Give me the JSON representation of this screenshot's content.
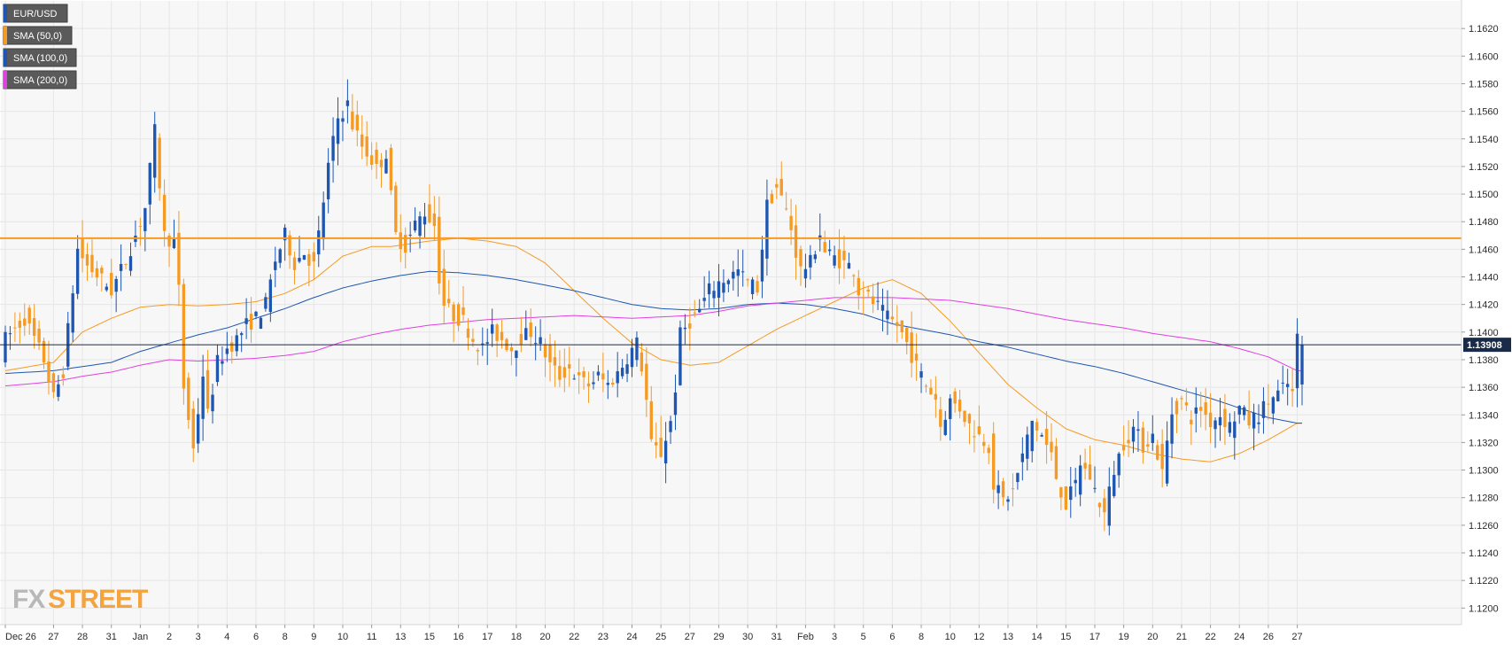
{
  "chart_data": {
    "type": "candlestick",
    "instrument": "EUR/USD",
    "last_price_label": "1.13908",
    "last_price": 1.13908,
    "horizontal_level": 1.1468,
    "ylim": [
      1.1188,
      1.164
    ],
    "y_ticks": [
      "1.1200",
      "1.1220",
      "1.1240",
      "1.1260",
      "1.1280",
      "1.1300",
      "1.1320",
      "1.1340",
      "1.1360",
      "1.1380",
      "1.1400",
      "1.1420",
      "1.1440",
      "1.1460",
      "1.1480",
      "1.1500",
      "1.1520",
      "1.1540",
      "1.1560",
      "1.1580",
      "1.1600",
      "1.1620"
    ],
    "x_ticks": [
      {
        "label": "Dec 26",
        "bar": 0
      },
      {
        "label": "27",
        "bar": 10
      },
      {
        "label": "28",
        "bar": 16
      },
      {
        "label": "31",
        "bar": 22
      },
      {
        "label": "Jan",
        "bar": 28
      },
      {
        "label": "2",
        "bar": 34
      },
      {
        "label": "3",
        "bar": 40
      },
      {
        "label": "4",
        "bar": 46
      },
      {
        "label": "6",
        "bar": 52
      },
      {
        "label": "8",
        "bar": 58
      },
      {
        "label": "9",
        "bar": 64
      },
      {
        "label": "10",
        "bar": 70
      },
      {
        "label": "11",
        "bar": 76
      },
      {
        "label": "13",
        "bar": 82
      },
      {
        "label": "15",
        "bar": 88
      },
      {
        "label": "16",
        "bar": 94
      },
      {
        "label": "17",
        "bar": 100
      },
      {
        "label": "18",
        "bar": 106
      },
      {
        "label": "20",
        "bar": 112
      },
      {
        "label": "22",
        "bar": 118
      },
      {
        "label": "23",
        "bar": 124
      },
      {
        "label": "24",
        "bar": 130
      },
      {
        "label": "25",
        "bar": 136
      },
      {
        "label": "27",
        "bar": 142
      },
      {
        "label": "29",
        "bar": 148
      },
      {
        "label": "30",
        "bar": 154
      },
      {
        "label": "31",
        "bar": 160
      },
      {
        "label": "Feb",
        "bar": 166
      },
      {
        "label": "3",
        "bar": 172
      },
      {
        "label": "5",
        "bar": 178
      },
      {
        "label": "6",
        "bar": 184
      },
      {
        "label": "8",
        "bar": 190
      },
      {
        "label": "10",
        "bar": 196
      },
      {
        "label": "12",
        "bar": 202
      },
      {
        "label": "13",
        "bar": 208
      },
      {
        "label": "14",
        "bar": 214
      },
      {
        "label": "15",
        "bar": 220
      },
      {
        "label": "17",
        "bar": 226
      },
      {
        "label": "19",
        "bar": 232
      },
      {
        "label": "20",
        "bar": 238
      },
      {
        "label": "21",
        "bar": 244
      },
      {
        "label": "22",
        "bar": 250
      },
      {
        "label": "24",
        "bar": 256
      },
      {
        "label": "26",
        "bar": 262
      },
      {
        "label": "27",
        "bar": 268
      }
    ],
    "total_bars": 270,
    "bull_color": "#1e56b0",
    "bear_color": "#f59a23",
    "level_color": "#f59a23",
    "legend": [
      {
        "label": "EUR/USD",
        "color": "#1e56b0"
      },
      {
        "label": "SMA (50,0)",
        "color": "#f59a23"
      },
      {
        "label": "SMA (100,0)",
        "color": "#1e56b0"
      },
      {
        "label": "SMA (200,0)",
        "color": "#e040e0"
      }
    ],
    "series": [
      {
        "name": "SMA (50,0)",
        "color": "#f59a23",
        "anchors": [
          [
            0,
            1.1372
          ],
          [
            10,
            1.1378
          ],
          [
            16,
            1.14
          ],
          [
            22,
            1.141
          ],
          [
            28,
            1.1418
          ],
          [
            34,
            1.142
          ],
          [
            40,
            1.1419
          ],
          [
            46,
            1.142
          ],
          [
            52,
            1.1422
          ],
          [
            58,
            1.1428
          ],
          [
            64,
            1.1438
          ],
          [
            70,
            1.1455
          ],
          [
            76,
            1.1462
          ],
          [
            80,
            1.1462
          ],
          [
            88,
            1.1466
          ],
          [
            94,
            1.1468
          ],
          [
            100,
            1.1466
          ],
          [
            106,
            1.1462
          ],
          [
            112,
            1.145
          ],
          [
            118,
            1.143
          ],
          [
            124,
            1.141
          ],
          [
            130,
            1.1392
          ],
          [
            136,
            1.138
          ],
          [
            142,
            1.1376
          ],
          [
            148,
            1.1378
          ],
          [
            154,
            1.139
          ],
          [
            160,
            1.1402
          ],
          [
            166,
            1.1412
          ],
          [
            172,
            1.1422
          ],
          [
            178,
            1.1432
          ],
          [
            184,
            1.1438
          ],
          [
            190,
            1.1428
          ],
          [
            196,
            1.1408
          ],
          [
            202,
            1.1385
          ],
          [
            208,
            1.1362
          ],
          [
            214,
            1.1345
          ],
          [
            220,
            1.133
          ],
          [
            226,
            1.1322
          ],
          [
            232,
            1.1318
          ],
          [
            238,
            1.1312
          ],
          [
            244,
            1.1308
          ],
          [
            250,
            1.1306
          ],
          [
            256,
            1.1312
          ],
          [
            262,
            1.1322
          ],
          [
            268,
            1.1334
          ]
        ]
      },
      {
        "name": "SMA (100,0)",
        "color": "#1e56b0",
        "anchors": [
          [
            0,
            1.137
          ],
          [
            10,
            1.1372
          ],
          [
            16,
            1.1375
          ],
          [
            22,
            1.1378
          ],
          [
            28,
            1.1386
          ],
          [
            34,
            1.1392
          ],
          [
            40,
            1.1398
          ],
          [
            46,
            1.1403
          ],
          [
            52,
            1.141
          ],
          [
            58,
            1.1417
          ],
          [
            64,
            1.1425
          ],
          [
            70,
            1.1432
          ],
          [
            76,
            1.1437
          ],
          [
            82,
            1.1441
          ],
          [
            88,
            1.1444
          ],
          [
            94,
            1.1443
          ],
          [
            100,
            1.1441
          ],
          [
            106,
            1.1438
          ],
          [
            112,
            1.1434
          ],
          [
            118,
            1.143
          ],
          [
            124,
            1.1425
          ],
          [
            130,
            1.142
          ],
          [
            136,
            1.1417
          ],
          [
            142,
            1.1416
          ],
          [
            148,
            1.1417
          ],
          [
            154,
            1.142
          ],
          [
            160,
            1.1421
          ],
          [
            166,
            1.142
          ],
          [
            172,
            1.1417
          ],
          [
            178,
            1.1413
          ],
          [
            184,
            1.1406
          ],
          [
            190,
            1.1402
          ],
          [
            196,
            1.1398
          ],
          [
            202,
            1.1393
          ],
          [
            208,
            1.1389
          ],
          [
            214,
            1.1384
          ],
          [
            220,
            1.1379
          ],
          [
            226,
            1.1375
          ],
          [
            232,
            1.137
          ],
          [
            238,
            1.1364
          ],
          [
            244,
            1.1358
          ],
          [
            250,
            1.1352
          ],
          [
            256,
            1.1345
          ],
          [
            262,
            1.1338
          ],
          [
            268,
            1.1334
          ]
        ]
      },
      {
        "name": "SMA (200,0)",
        "color": "#e040e0",
        "anchors": [
          [
            0,
            1.1361
          ],
          [
            10,
            1.1364
          ],
          [
            16,
            1.1368
          ],
          [
            22,
            1.1371
          ],
          [
            28,
            1.1376
          ],
          [
            34,
            1.138
          ],
          [
            40,
            1.1379
          ],
          [
            46,
            1.138
          ],
          [
            52,
            1.1381
          ],
          [
            58,
            1.1383
          ],
          [
            64,
            1.1386
          ],
          [
            70,
            1.1393
          ],
          [
            76,
            1.1398
          ],
          [
            82,
            1.1402
          ],
          [
            88,
            1.1405
          ],
          [
            94,
            1.1407
          ],
          [
            100,
            1.1409
          ],
          [
            106,
            1.141
          ],
          [
            112,
            1.1411
          ],
          [
            118,
            1.1412
          ],
          [
            124,
            1.1411
          ],
          [
            130,
            1.141
          ],
          [
            136,
            1.1411
          ],
          [
            142,
            1.1412
          ],
          [
            148,
            1.1415
          ],
          [
            154,
            1.1419
          ],
          [
            160,
            1.1421
          ],
          [
            166,
            1.1423
          ],
          [
            172,
            1.1425
          ],
          [
            178,
            1.1425
          ],
          [
            184,
            1.1425
          ],
          [
            190,
            1.1424
          ],
          [
            196,
            1.1423
          ],
          [
            202,
            1.142
          ],
          [
            208,
            1.1417
          ],
          [
            214,
            1.1413
          ],
          [
            220,
            1.1409
          ],
          [
            226,
            1.1406
          ],
          [
            232,
            1.1403
          ],
          [
            238,
            1.1399
          ],
          [
            244,
            1.1396
          ],
          [
            250,
            1.1393
          ],
          [
            256,
            1.1388
          ],
          [
            262,
            1.1382
          ],
          [
            268,
            1.1372
          ]
        ]
      }
    ],
    "price_anchors": [
      [
        0,
        1.1395
      ],
      [
        4,
        1.141
      ],
      [
        8,
        1.138
      ],
      [
        10,
        1.1352
      ],
      [
        12,
        1.1372
      ],
      [
        15,
        1.146
      ],
      [
        17,
        1.1448
      ],
      [
        20,
        1.1438
      ],
      [
        22,
        1.143
      ],
      [
        25,
        1.1452
      ],
      [
        27,
        1.147
      ],
      [
        29,
        1.149
      ],
      [
        31,
        1.1545
      ],
      [
        33,
        1.147
      ],
      [
        35,
        1.1465
      ],
      [
        36,
        1.143
      ],
      [
        37,
        1.136
      ],
      [
        39,
        1.1315
      ],
      [
        41,
        1.137
      ],
      [
        42,
        1.134
      ],
      [
        44,
        1.1378
      ],
      [
        46,
        1.1388
      ],
      [
        48,
        1.1395
      ],
      [
        50,
        1.1405
      ],
      [
        52,
        1.141
      ],
      [
        54,
        1.142
      ],
      [
        56,
        1.1452
      ],
      [
        58,
        1.147
      ],
      [
        60,
        1.145
      ],
      [
        62,
        1.1458
      ],
      [
        64,
        1.1448
      ],
      [
        65,
        1.147
      ],
      [
        67,
        1.152
      ],
      [
        69,
        1.1555
      ],
      [
        71,
        1.1565
      ],
      [
        72,
        1.155
      ],
      [
        74,
        1.1535
      ],
      [
        76,
        1.1525
      ],
      [
        77,
        1.1518
      ],
      [
        79,
        1.153
      ],
      [
        80,
        1.1498
      ],
      [
        81,
        1.147
      ],
      [
        83,
        1.1462
      ],
      [
        85,
        1.1478
      ],
      [
        87,
        1.1487
      ],
      [
        89,
        1.1478
      ],
      [
        90,
        1.144
      ],
      [
        91,
        1.142
      ],
      [
        93,
        1.1412
      ],
      [
        95,
        1.1408
      ],
      [
        97,
        1.1395
      ],
      [
        99,
        1.1388
      ],
      [
        101,
        1.14
      ],
      [
        103,
        1.1395
      ],
      [
        105,
        1.1388
      ],
      [
        107,
        1.1396
      ],
      [
        109,
        1.14
      ],
      [
        111,
        1.1392
      ],
      [
        113,
        1.1376
      ],
      [
        115,
        1.1368
      ],
      [
        117,
        1.1374
      ],
      [
        119,
        1.1365
      ],
      [
        121,
        1.1362
      ],
      [
        123,
        1.1368
      ],
      [
        125,
        1.1362
      ],
      [
        127,
        1.137
      ],
      [
        129,
        1.1382
      ],
      [
        131,
        1.1392
      ],
      [
        132,
        1.1375
      ],
      [
        133,
        1.135
      ],
      [
        134,
        1.1318
      ],
      [
        136,
        1.1312
      ],
      [
        138,
        1.1335
      ],
      [
        139,
        1.136
      ],
      [
        140,
        1.1398
      ],
      [
        142,
        1.1408
      ],
      [
        144,
        1.1416
      ],
      [
        146,
        1.143
      ],
      [
        148,
        1.1436
      ],
      [
        150,
        1.144
      ],
      [
        152,
        1.1444
      ],
      [
        154,
        1.1436
      ],
      [
        156,
        1.1432
      ],
      [
        158,
        1.1492
      ],
      [
        160,
        1.1505
      ],
      [
        162,
        1.1488
      ],
      [
        163,
        1.1475
      ],
      [
        164,
        1.1458
      ],
      [
        165,
        1.1445
      ],
      [
        167,
        1.145
      ],
      [
        169,
        1.1472
      ],
      [
        170,
        1.1458
      ],
      [
        172,
        1.1454
      ],
      [
        174,
        1.145
      ],
      [
        176,
        1.1446
      ],
      [
        177,
        1.143
      ],
      [
        179,
        1.1425
      ],
      [
        181,
        1.1418
      ],
      [
        183,
        1.141
      ],
      [
        185,
        1.1405
      ],
      [
        187,
        1.1392
      ],
      [
        189,
        1.1375
      ],
      [
        191,
        1.1362
      ],
      [
        193,
        1.1352
      ],
      [
        194,
        1.1332
      ],
      [
        196,
        1.135
      ],
      [
        198,
        1.1345
      ],
      [
        200,
        1.1332
      ],
      [
        202,
        1.1325
      ],
      [
        204,
        1.1318
      ],
      [
        205,
        1.129
      ],
      [
        207,
        1.1278
      ],
      [
        209,
        1.1285
      ],
      [
        211,
        1.131
      ],
      [
        213,
        1.1335
      ],
      [
        215,
        1.1325
      ],
      [
        217,
        1.131
      ],
      [
        218,
        1.1295
      ],
      [
        220,
        1.1275
      ],
      [
        222,
        1.129
      ],
      [
        223,
        1.1305
      ],
      [
        225,
        1.1295
      ],
      [
        226,
        1.1285
      ],
      [
        228,
        1.1268
      ],
      [
        230,
        1.13
      ],
      [
        232,
        1.132
      ],
      [
        234,
        1.133
      ],
      [
        236,
        1.1318
      ],
      [
        238,
        1.1325
      ],
      [
        240,
        1.1298
      ],
      [
        242,
        1.1342
      ],
      [
        244,
        1.135
      ],
      [
        246,
        1.1338
      ],
      [
        248,
        1.1345
      ],
      [
        250,
        1.1335
      ],
      [
        252,
        1.134
      ],
      [
        254,
        1.1332
      ],
      [
        256,
        1.1345
      ],
      [
        258,
        1.1335
      ],
      [
        260,
        1.134
      ],
      [
        262,
        1.135
      ],
      [
        264,
        1.1355
      ],
      [
        266,
        1.1362
      ],
      [
        267,
        1.1355
      ],
      [
        268,
        1.1395
      ]
    ]
  }
}
